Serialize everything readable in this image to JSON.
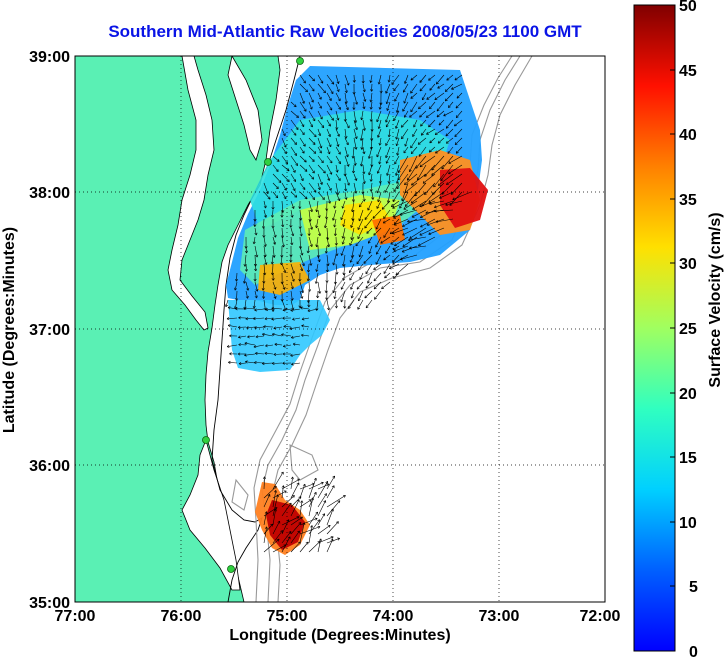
{
  "title": "Southern Mid-Atlantic Raw Velocities 2008/05/23 1100 GMT",
  "x_axis": {
    "label": "Longitude (Degrees:Minutes)",
    "ticks": [
      "77:00",
      "76:00",
      "75:00",
      "74:00",
      "73:00",
      "72:00"
    ]
  },
  "y_axis": {
    "label": "Latitude (Degrees:Minutes)",
    "ticks": [
      "39:00",
      "38:00",
      "37:00",
      "36:00",
      "35:00"
    ]
  },
  "colorbar": {
    "label": "Surface Velocity (cm/s)",
    "ticks": [
      "50",
      "45",
      "40",
      "35",
      "30",
      "25",
      "20",
      "15",
      "10",
      "5",
      "0"
    ],
    "colormap": "jet",
    "range": [
      0,
      50
    ]
  },
  "colors": {
    "title": "#0a14e6",
    "land": "#5af0b4",
    "grid": "#000000",
    "bathymetry": "#999999",
    "stations": "#30d040"
  }
}
